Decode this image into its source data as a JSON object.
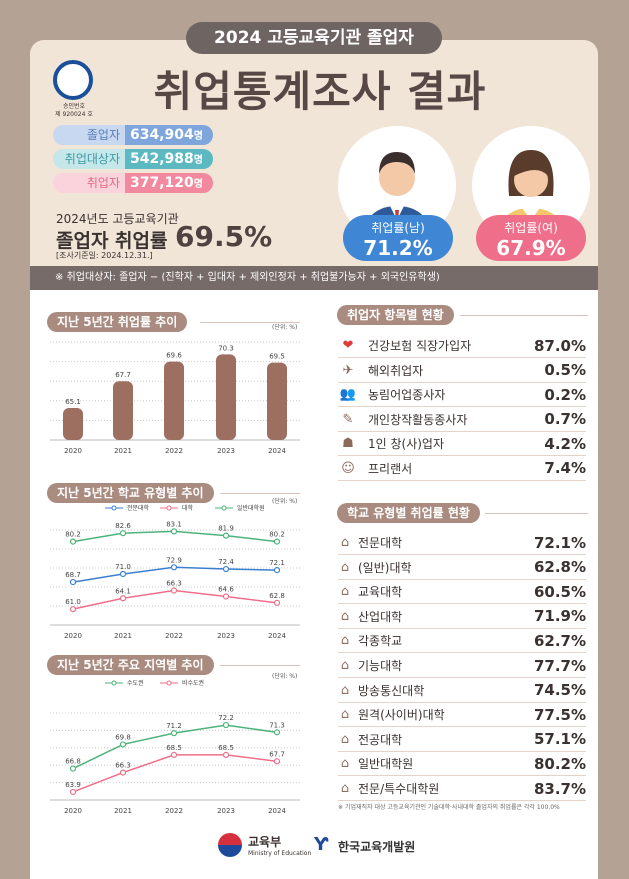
{
  "header": {
    "title_pill": "2024 고등교육기관 졸업자",
    "main_title": "취업통계조사 결과",
    "seal_text": [
      "승인번호",
      "제 920024 호"
    ]
  },
  "stats": [
    {
      "label": "졸업자",
      "value": "634,904",
      "unit": "명",
      "color": "#7ea6dd",
      "light": "#c7d8f0",
      "text": "#5a7fb8"
    },
    {
      "label": "취업대상자",
      "value": "542,988",
      "unit": "명",
      "color": "#5cb9c2",
      "light": "#c5e7ea",
      "text": "#3c9aa3"
    },
    {
      "label": "취업자",
      "value": "377,120",
      "unit": "명",
      "color": "#f2899f",
      "light": "#fbd3dc",
      "text": "#e16a84"
    }
  ],
  "rate": {
    "sub": "2024년도 고등교육기관",
    "main": "졸업자 취업률",
    "value": "69.5%",
    "date": "[조사기준일: 2024.12.31.]"
  },
  "gender": [
    {
      "label": "취업률(남)",
      "value": "71.2%",
      "color": "#3f87d4"
    },
    {
      "label": "취업률(여)",
      "value": "67.9%",
      "color": "#ef6f8a"
    }
  ],
  "note": "※ 취업대상자: 졸업자 − (진학자 + 입대자 + 제외인정자 + 취업불가능자 + 외국인유학생)",
  "sections": {
    "s1": "지난 5년간 취업률 추이",
    "s2": "지난 5년간 학교 유형별 추이",
    "s3": "지난 5년간 주요 지역별 추이",
    "s4": "취업자 항목별 현황",
    "s5": "학교 유형별 취업률 현황",
    "unit": "(단위: %)"
  },
  "chart_data": [
    {
      "type": "bar",
      "categories": [
        "2020",
        "2021",
        "2022",
        "2023",
        "2024"
      ],
      "values": [
        65.1,
        67.7,
        69.6,
        70.3,
        69.5
      ],
      "ylim": [
        62,
        71.5
      ],
      "grid": true,
      "color": "#9c6f60"
    },
    {
      "type": "line",
      "categories": [
        "2020",
        "2021",
        "2022",
        "2023",
        "2024"
      ],
      "ylim": [
        56.5,
        83.5
      ],
      "grid": true,
      "legend": "top",
      "series": [
        {
          "name": "전문대학",
          "values": [
            68.7,
            71.0,
            72.9,
            72.4,
            72.1
          ],
          "color": "#3b7fcf"
        },
        {
          "name": "대학",
          "values": [
            61.0,
            64.1,
            66.3,
            64.6,
            62.8
          ],
          "color": "#ef6f8a"
        },
        {
          "name": "일반대학원",
          "values": [
            80.2,
            82.6,
            83.1,
            81.9,
            80.2
          ],
          "color": "#4db37a"
        }
      ]
    },
    {
      "type": "line",
      "categories": [
        "2020",
        "2021",
        "2022",
        "2023",
        "2024"
      ],
      "ylim": [
        62.9,
        73.7
      ],
      "grid": true,
      "legend": "top",
      "series": [
        {
          "name": "수도권",
          "values": [
            66.8,
            69.8,
            71.2,
            72.2,
            71.3
          ],
          "color": "#4db37a"
        },
        {
          "name": "비수도권",
          "values": [
            63.9,
            66.3,
            68.5,
            68.5,
            67.7
          ],
          "color": "#ef6f8a"
        }
      ]
    }
  ],
  "items": [
    {
      "icon": "heart-icon",
      "glyph": "❤",
      "label": "건강보험 직장가입자",
      "value": "87.0%"
    },
    {
      "icon": "globe-briefcase-icon",
      "glyph": "✈",
      "label": "해외취업자",
      "value": "0.5%"
    },
    {
      "icon": "farmers-icon",
      "glyph": "👥",
      "label": "농림어업종사자",
      "value": "0.2%"
    },
    {
      "icon": "artist-icon",
      "glyph": "✎",
      "label": "개인창작활동종사자",
      "value": "0.7%"
    },
    {
      "icon": "entrepreneur-icon",
      "glyph": "☗",
      "label": "1인 창(사)업자",
      "value": "4.2%"
    },
    {
      "icon": "freelancer-icon",
      "glyph": "☺",
      "label": "프리랜서",
      "value": "7.4%"
    }
  ],
  "schools": [
    {
      "label": "전문대학",
      "value": "72.1%"
    },
    {
      "label": "(일반)대학",
      "value": "62.8%"
    },
    {
      "label": "교육대학",
      "value": "60.5%"
    },
    {
      "label": "산업대학",
      "value": "71.9%"
    },
    {
      "label": "각종학교",
      "value": "62.7%"
    },
    {
      "label": "기능대학",
      "value": "77.7%"
    },
    {
      "label": "방송통신대학",
      "value": "74.5%"
    },
    {
      "label": "원격(사이버)대학",
      "value": "77.5%"
    },
    {
      "label": "전공대학",
      "value": "57.1%"
    },
    {
      "label": "일반대학원",
      "value": "80.2%"
    },
    {
      "label": "전문/특수대학원",
      "value": "83.7%"
    }
  ],
  "school_note": "※ 기업재직자 대상 고등교육기관인 기술대학·사내대학 졸업자의 취업률은 각각 100.0%",
  "footer": {
    "moe": "교육부",
    "moe_en": "Ministry of Education",
    "kedi": "한국교육개발원"
  }
}
